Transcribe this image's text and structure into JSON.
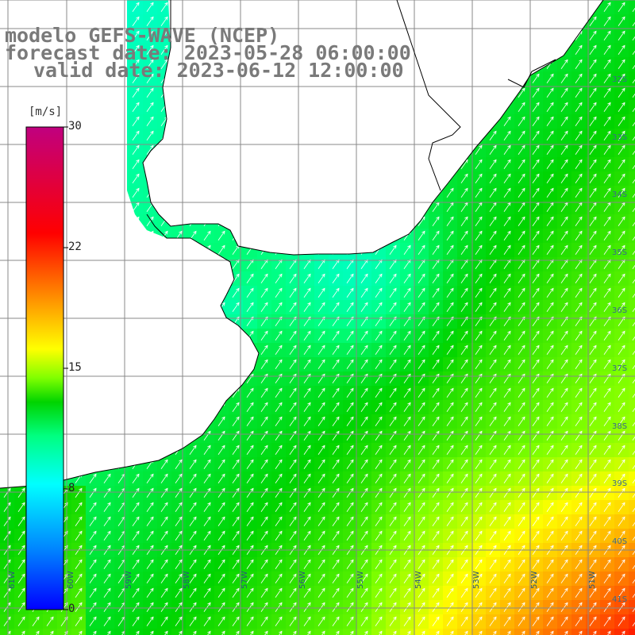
{
  "title": {
    "line1": "modelo GEFS-WAVE (NCEP)",
    "line2": "forecast date: 2023-05-28 06:00:00",
    "line3": "valid date: 2023-06-12 12:00:00"
  },
  "colorbar": {
    "unit": "[m/s]",
    "min": 0,
    "max": 30,
    "ticks": [
      "30",
      "22",
      "15",
      "8",
      "0"
    ],
    "tick_values": [
      30,
      22,
      15,
      8,
      0
    ],
    "colors": [
      "#0000ff",
      "#0080ff",
      "#00ffff",
      "#00ff80",
      "#00d400",
      "#80ff00",
      "#ffff00",
      "#ff8000",
      "#ff0000",
      "#c0007f"
    ]
  },
  "grid": {
    "lat_labels": [
      "32S",
      "33S",
      "34S",
      "35S",
      "36S",
      "37S",
      "38S",
      "39S",
      "40S",
      "41S"
    ],
    "lon_labels": [
      "61W",
      "60W",
      "59W",
      "58W",
      "57W",
      "56W",
      "55W",
      "54W",
      "53W",
      "52W",
      "51W"
    ]
  },
  "colors": {
    "land": "#ffffff",
    "coast": "#000000",
    "grid": "#888888",
    "arrow": "#ffffff",
    "title": "#7a7a7a"
  }
}
